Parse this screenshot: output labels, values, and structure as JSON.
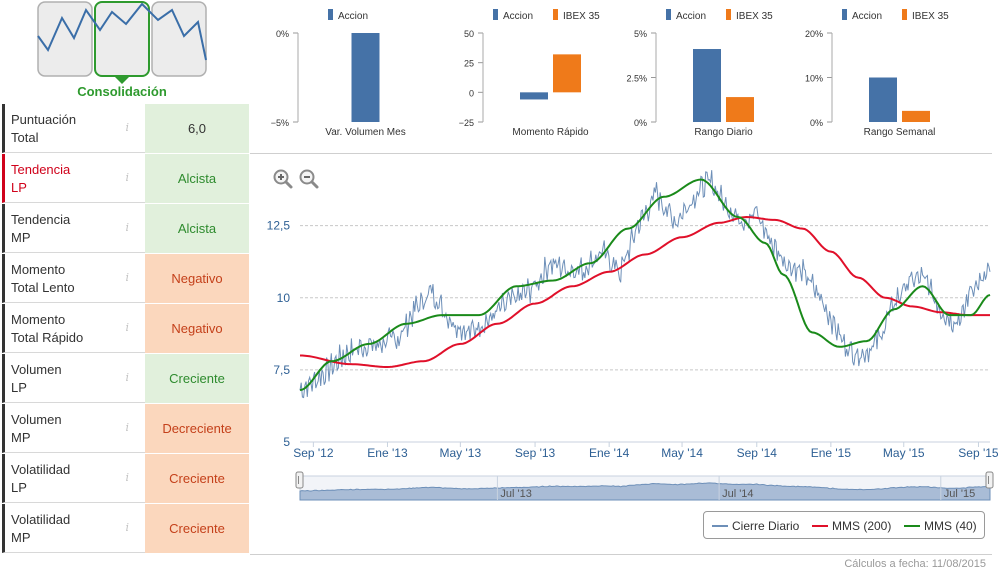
{
  "badge": {
    "title": "Consolidación",
    "stage_icons": [
      "downtrend-stage-icon",
      "consolidation-stage-icon",
      "uptrend-stage-icon"
    ],
    "active_stage": 1
  },
  "indicators": [
    {
      "label_1": "Puntuación",
      "label_2": "Total",
      "value": "6,0",
      "state": "neutral",
      "highlight": false
    },
    {
      "label_1": "Tendencia",
      "label_2": "LP",
      "value": "Alcista",
      "state": "positive",
      "highlight": true
    },
    {
      "label_1": "Tendencia",
      "label_2": "MP",
      "value": "Alcista",
      "state": "positive",
      "highlight": false
    },
    {
      "label_1": "Momento",
      "label_2": "Total Lento",
      "value": "Negativo",
      "state": "negative",
      "highlight": false
    },
    {
      "label_1": "Momento",
      "label_2": "Total Rápido",
      "value": "Negativo",
      "state": "negative",
      "highlight": false
    },
    {
      "label_1": "Volumen",
      "label_2": "LP",
      "value": "Creciente",
      "state": "positive",
      "highlight": false
    },
    {
      "label_1": "Volumen",
      "label_2": "MP",
      "value": "Decreciente",
      "state": "negative",
      "highlight": false
    },
    {
      "label_1": "Volatilidad",
      "label_2": "LP",
      "value": "Creciente",
      "state": "negative",
      "highlight": false
    },
    {
      "label_1": "Volatilidad",
      "label_2": "MP",
      "value": "Creciente",
      "state": "negative",
      "highlight": false
    }
  ],
  "info_glyph": "i",
  "colors": {
    "accion": "#4572a7",
    "ibex": "#ef7a1a",
    "cierre": "#6d8fb8",
    "mms200": "#e0102a",
    "mms40": "#1a8a1a",
    "positive_bg": "#e1f0dc",
    "negative_bg": "#fbd7bd"
  },
  "footnote": "Cálculos a fecha: 11/08/2015",
  "chart_data": [
    {
      "type": "bar",
      "title": "Var. Volumen Mes",
      "series": [
        {
          "name": "Accion",
          "values": [
            -5
          ]
        }
      ],
      "ylim": [
        -5,
        0
      ],
      "ticks": [
        0,
        -5
      ],
      "tick_labels": [
        "0%",
        "−5%"
      ]
    },
    {
      "type": "bar",
      "title": "Momento Rápido",
      "series": [
        {
          "name": "Accion",
          "values": [
            -6
          ]
        },
        {
          "name": "IBEX 35",
          "values": [
            32
          ]
        }
      ],
      "ylim": [
        -25,
        50
      ],
      "ticks": [
        50,
        25,
        0,
        -25
      ],
      "tick_labels": [
        "50",
        "25",
        "0",
        "−25"
      ]
    },
    {
      "type": "bar",
      "title": "Rango Diario",
      "series": [
        {
          "name": "Accion",
          "values": [
            4.1
          ]
        },
        {
          "name": "IBEX 35",
          "values": [
            1.4
          ]
        }
      ],
      "ylim": [
        0,
        5
      ],
      "ticks": [
        5,
        2.5,
        0
      ],
      "tick_labels": [
        "5%",
        "2.5%",
        "0%"
      ]
    },
    {
      "type": "bar",
      "title": "Rango Semanal",
      "series": [
        {
          "name": "Accion",
          "values": [
            10
          ]
        },
        {
          "name": "IBEX 35",
          "values": [
            2.5
          ]
        }
      ],
      "ylim": [
        0,
        20
      ],
      "ticks": [
        20,
        10,
        0
      ],
      "tick_labels": [
        "20%",
        "10%",
        "0%"
      ]
    },
    {
      "type": "line",
      "x_ticks": [
        "Sep '12",
        "Ene '13",
        "May '13",
        "Sep '13",
        "Ene '14",
        "May '14",
        "Sep '14",
        "Ene '15",
        "May '15",
        "Sep '15"
      ],
      "x_range": [
        "2012-08-10",
        "2015-09-20"
      ],
      "ylim": [
        5,
        14.5
      ],
      "y_ticks": [
        5,
        7.5,
        10,
        12.5
      ],
      "y_tick_labels": [
        "5",
        "7,5",
        "10",
        "12,5"
      ],
      "grid": true,
      "legend": "bottom-right",
      "navigator_labels": [
        "Jul '13",
        "Jul '14",
        "Jul '15"
      ],
      "series": [
        {
          "name": "Cierre Diario",
          "x": [
            "2012-08-10",
            "2012-09-15",
            "2012-10-20",
            "2012-11-20",
            "2012-12-15",
            "2013-01-20",
            "2013-02-15",
            "2013-03-15",
            "2013-04-15",
            "2013-05-15",
            "2013-06-20",
            "2013-07-15",
            "2013-08-10",
            "2013-09-01",
            "2013-09-25",
            "2013-10-25",
            "2013-11-20",
            "2013-12-20",
            "2014-01-20",
            "2014-02-15",
            "2014-03-20",
            "2014-04-20",
            "2014-05-20",
            "2014-06-15",
            "2014-07-10",
            "2014-08-05",
            "2014-09-01",
            "2014-09-25",
            "2014-10-20",
            "2014-11-20",
            "2014-12-20",
            "2015-01-25",
            "2015-02-20",
            "2015-03-20",
            "2015-04-15",
            "2015-05-10",
            "2015-06-05",
            "2015-06-25",
            "2015-07-15",
            "2015-08-05",
            "2015-08-20",
            "2015-09-05",
            "2015-09-20"
          ],
          "y": [
            6.8,
            7.3,
            8.0,
            8.3,
            8.4,
            8.6,
            9.6,
            10.2,
            9.2,
            8.8,
            9.3,
            9.8,
            10.1,
            10.4,
            11.2,
            11.0,
            11.0,
            11.6,
            10.9,
            12.4,
            13.6,
            12.6,
            13.5,
            14.1,
            13.3,
            12.7,
            12.9,
            11.9,
            11.2,
            10.8,
            9.8,
            8.3,
            8.0,
            8.5,
            9.8,
            10.6,
            10.7,
            9.8,
            9.2,
            9.3,
            10.4,
            10.5,
            10.9
          ]
        },
        {
          "name": "MMS (200)",
          "x": [
            "2012-08-10",
            "2012-11-01",
            "2013-01-01",
            "2013-03-01",
            "2013-05-01",
            "2013-07-01",
            "2013-09-01",
            "2013-11-01",
            "2014-01-01",
            "2014-03-01",
            "2014-05-01",
            "2014-07-01",
            "2014-08-15",
            "2014-10-01",
            "2014-11-15",
            "2015-01-01",
            "2015-02-15",
            "2015-04-01",
            "2015-05-15",
            "2015-07-01",
            "2015-08-15",
            "2015-09-20"
          ],
          "y": [
            8.0,
            7.7,
            7.6,
            7.8,
            8.4,
            9.1,
            9.8,
            10.4,
            10.9,
            11.5,
            12.1,
            12.6,
            12.8,
            12.7,
            12.4,
            11.6,
            10.7,
            10.0,
            9.7,
            9.5,
            9.4,
            9.4
          ]
        },
        {
          "name": "MMS (40)",
          "x": [
            "2012-08-10",
            "2012-10-01",
            "2012-12-01",
            "2013-02-01",
            "2013-04-01",
            "2013-06-01",
            "2013-08-01",
            "2013-10-01",
            "2013-12-01",
            "2014-02-01",
            "2014-04-01",
            "2014-06-01",
            "2014-08-01",
            "2014-09-15",
            "2014-10-15",
            "2014-12-01",
            "2015-01-15",
            "2015-03-01",
            "2015-04-15",
            "2015-06-01",
            "2015-07-15",
            "2015-08-20",
            "2015-09-20"
          ],
          "y": [
            6.8,
            7.8,
            8.4,
            9.1,
            9.4,
            9.4,
            10.4,
            10.6,
            11.2,
            12.4,
            13.5,
            14.1,
            12.8,
            11.9,
            10.8,
            8.8,
            8.3,
            8.5,
            9.6,
            10.4,
            9.4,
            9.4,
            10.1
          ]
        }
      ]
    }
  ]
}
